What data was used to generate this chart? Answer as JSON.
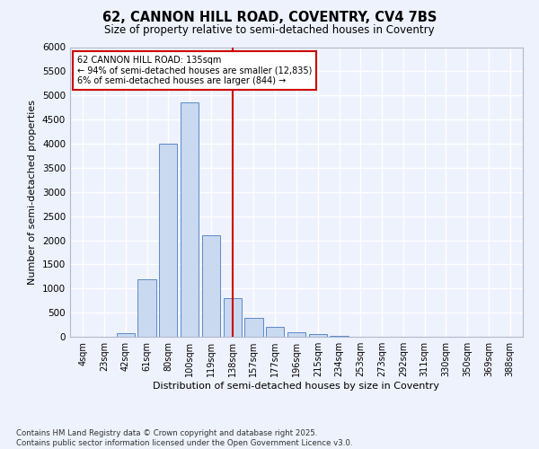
{
  "title_line1": "62, CANNON HILL ROAD, COVENTRY, CV4 7BS",
  "title_line2": "Size of property relative to semi-detached houses in Coventry",
  "xlabel": "Distribution of semi-detached houses by size in Coventry",
  "ylabel": "Number of semi-detached properties",
  "bar_color": "#c9d9f0",
  "bar_edge_color": "#5a8ac6",
  "categories": [
    "4sqm",
    "23sqm",
    "42sqm",
    "61sqm",
    "80sqm",
    "100sqm",
    "119sqm",
    "138sqm",
    "157sqm",
    "177sqm",
    "196sqm",
    "215sqm",
    "234sqm",
    "253sqm",
    "273sqm",
    "292sqm",
    "311sqm",
    "330sqm",
    "350sqm",
    "369sqm",
    "388sqm"
  ],
  "values": [
    0,
    0,
    75,
    1200,
    4000,
    4850,
    2100,
    800,
    400,
    200,
    100,
    50,
    25,
    5,
    2,
    1,
    0,
    0,
    0,
    0,
    0
  ],
  "ylim": [
    0,
    6000
  ],
  "yticks": [
    0,
    500,
    1000,
    1500,
    2000,
    2500,
    3000,
    3500,
    4000,
    4500,
    5000,
    5500,
    6000
  ],
  "vline_x_index": 7,
  "vline_color": "#cc0000",
  "annotation_text": "62 CANNON HILL ROAD: 135sqm\n← 94% of semi-detached houses are smaller (12,835)\n6% of semi-detached houses are larger (844) →",
  "annotation_box_color": "#ffffff",
  "annotation_box_edge": "#cc0000",
  "footnote": "Contains HM Land Registry data © Crown copyright and database right 2025.\nContains public sector information licensed under the Open Government Licence v3.0.",
  "bg_color": "#eef2fc",
  "grid_color": "#ffffff"
}
